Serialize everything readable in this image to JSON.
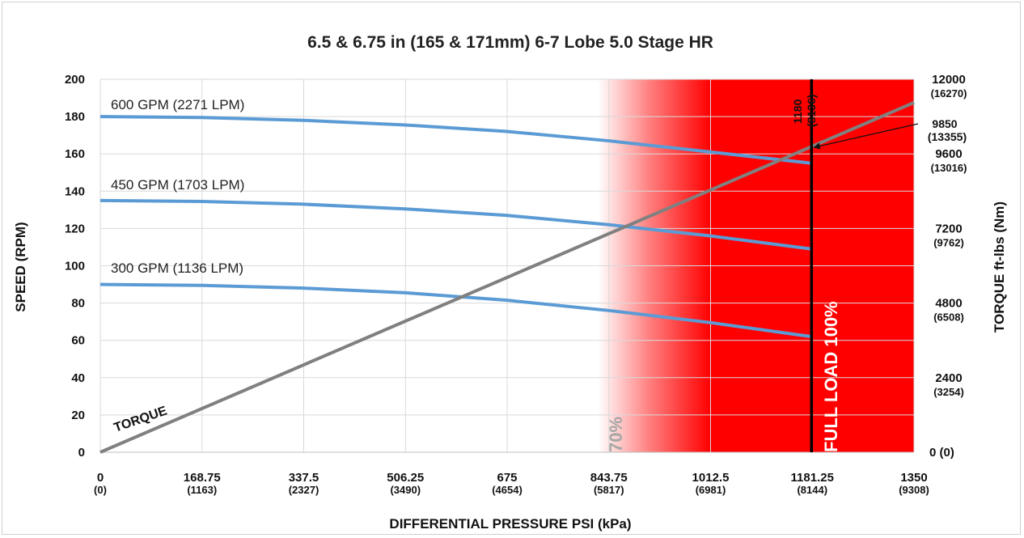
{
  "chart_data": {
    "type": "line",
    "title": "6.5 & 6.75 in (165 & 171mm) 6-7 Lobe 5.0 Stage HR",
    "xlabel": "DIFFERENTIAL PRESSURE PSI (kPa)",
    "ylabel": "SPEED (RPM)",
    "y2label": "TORQUE ft-lbs (Nm)",
    "xlim": [
      0,
      1350
    ],
    "ylim": [
      0,
      200
    ],
    "y2lim": [
      0,
      12000
    ],
    "grid": true,
    "x_ticks": [
      {
        "value": 0,
        "label": "0",
        "sub": "(0)"
      },
      {
        "value": 168.75,
        "label": "168.75",
        "sub": "(1163)"
      },
      {
        "value": 337.5,
        "label": "337.5",
        "sub": "(2327)"
      },
      {
        "value": 506.25,
        "label": "506.25",
        "sub": "(3490)"
      },
      {
        "value": 675,
        "label": "675",
        "sub": "(4654)"
      },
      {
        "value": 843.75,
        "label": "843.75",
        "sub": "(5817)"
      },
      {
        "value": 1012.5,
        "label": "1012.5",
        "sub": "(6981)"
      },
      {
        "value": 1181.25,
        "label": "1181.25",
        "sub": "(8144)"
      },
      {
        "value": 1350,
        "label": "1350",
        "sub": "(9308)"
      }
    ],
    "y_ticks": [
      "0",
      "20",
      "40",
      "60",
      "80",
      "100",
      "120",
      "140",
      "160",
      "180",
      "200"
    ],
    "y2_ticks": [
      {
        "value": 0,
        "label": "0",
        "sub": "(0)"
      },
      {
        "value": 2400,
        "label": "2400",
        "sub": "(3254)"
      },
      {
        "value": 4800,
        "label": "4800",
        "sub": "(6508)"
      },
      {
        "value": 7200,
        "label": "7200",
        "sub": "(9762)"
      },
      {
        "value": 9600,
        "label": "9600",
        "sub": "(13016)"
      },
      {
        "value": 12000,
        "label": "12000",
        "sub": "(16270)"
      }
    ],
    "series": [
      {
        "name": "600 GPM (2271 LPM)",
        "color": "#5b9bd5",
        "axis": "left",
        "x": [
          0,
          168.75,
          337.5,
          506.25,
          675,
          843.75,
          1012.5,
          1180
        ],
        "y": [
          180,
          179.5,
          178,
          175.5,
          172,
          167,
          161,
          155
        ]
      },
      {
        "name": "450 GPM (1703 LPM)",
        "color": "#5b9bd5",
        "axis": "left",
        "x": [
          0,
          168.75,
          337.5,
          506.25,
          675,
          843.75,
          1012.5,
          1180
        ],
        "y": [
          135,
          134.5,
          133,
          130.5,
          127,
          122,
          116,
          109
        ]
      },
      {
        "name": "300 GPM (1136 LPM)",
        "color": "#5b9bd5",
        "axis": "left",
        "x": [
          0,
          168.75,
          337.5,
          506.25,
          675,
          843.75,
          1012.5,
          1180
        ],
        "y": [
          90,
          89.5,
          88,
          85.5,
          81.5,
          76,
          69.5,
          62
        ]
      },
      {
        "name": "TORQUE",
        "color": "#808080",
        "axis": "right",
        "x": [
          0,
          1350
        ],
        "y": [
          0,
          11250
        ]
      }
    ],
    "zones": [
      {
        "label": "70%",
        "x_start": 826,
        "color_start": "#ffffff",
        "color_end": "#ff0000"
      },
      {
        "label": "FULL LOAD 100%",
        "x": 1180
      }
    ],
    "annotations": {
      "full_load_top": "1180",
      "full_load_top_sub": "(8136)",
      "torque_point": "9850",
      "torque_point_sub": "(13355)"
    }
  }
}
